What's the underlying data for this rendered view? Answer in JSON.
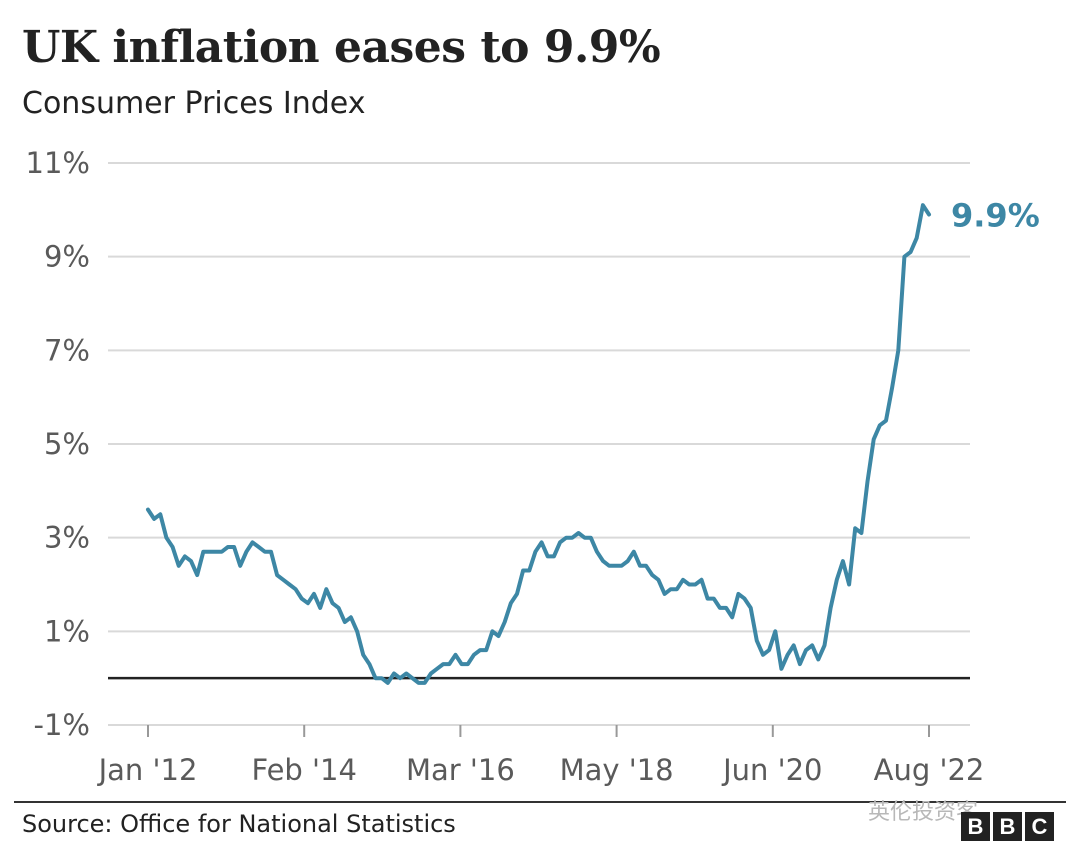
{
  "title": "UK inflation eases to 9.9%",
  "subtitle": "Consumer Prices Index",
  "source": "Source: Office for National Statistics",
  "watermark": "英伦投资客",
  "logo_letters": [
    "B",
    "B",
    "C"
  ],
  "colors": {
    "line": "#3d87a5",
    "grid": "#d9d9d9",
    "zero_line": "#222222",
    "text": "#222222",
    "tick_text": "#5a5a5a"
  },
  "chart_data": {
    "type": "line",
    "title": "UK inflation eases to 9.9%",
    "subtitle": "Consumer Prices Index",
    "ylim": [
      -1,
      11
    ],
    "y_ticks": [
      11,
      9,
      7,
      5,
      3,
      1,
      -1
    ],
    "y_tick_labels": [
      "11%",
      "9%",
      "7%",
      "5%",
      "3%",
      "1%",
      "-1%"
    ],
    "x_tick_labels": [
      "Jan '12",
      "Feb '14",
      "Mar '16",
      "May '18",
      "Jun '20",
      "Aug '22"
    ],
    "grid": true,
    "end_label": "9.9%",
    "series": [
      {
        "values": [
          3.6,
          3.4,
          3.5,
          3.0,
          2.8,
          2.4,
          2.6,
          2.5,
          2.2,
          2.7,
          2.7,
          2.7,
          2.7,
          2.8,
          2.8,
          2.4,
          2.7,
          2.9,
          2.8,
          2.7,
          2.7,
          2.2,
          2.1,
          2.0,
          1.9,
          1.7,
          1.6,
          1.8,
          1.5,
          1.9,
          1.6,
          1.5,
          1.2,
          1.3,
          1.0,
          0.5,
          0.3,
          0.0,
          0.0,
          -0.1,
          0.1,
          0.0,
          0.1,
          0.0,
          -0.1,
          -0.1,
          0.1,
          0.2,
          0.3,
          0.3,
          0.5,
          0.3,
          0.3,
          0.5,
          0.6,
          0.6,
          1.0,
          0.9,
          1.2,
          1.6,
          1.8,
          2.3,
          2.3,
          2.7,
          2.9,
          2.6,
          2.6,
          2.9,
          3.0,
          3.0,
          3.1,
          3.0,
          3.0,
          2.7,
          2.5,
          2.4,
          2.4,
          2.4,
          2.5,
          2.7,
          2.4,
          2.4,
          2.2,
          2.1,
          1.8,
          1.9,
          1.9,
          2.1,
          2.0,
          2.0,
          2.1,
          1.7,
          1.7,
          1.5,
          1.5,
          1.3,
          1.8,
          1.7,
          1.5,
          0.8,
          0.5,
          0.6,
          1.0,
          0.2,
          0.5,
          0.7,
          0.3,
          0.6,
          0.7,
          0.4,
          0.7,
          1.5,
          2.1,
          2.5,
          2.0,
          3.2,
          3.1,
          4.2,
          5.1,
          5.4,
          5.5,
          6.2,
          7.0,
          9.0,
          9.1,
          9.4,
          10.1,
          9.9
        ]
      }
    ]
  }
}
